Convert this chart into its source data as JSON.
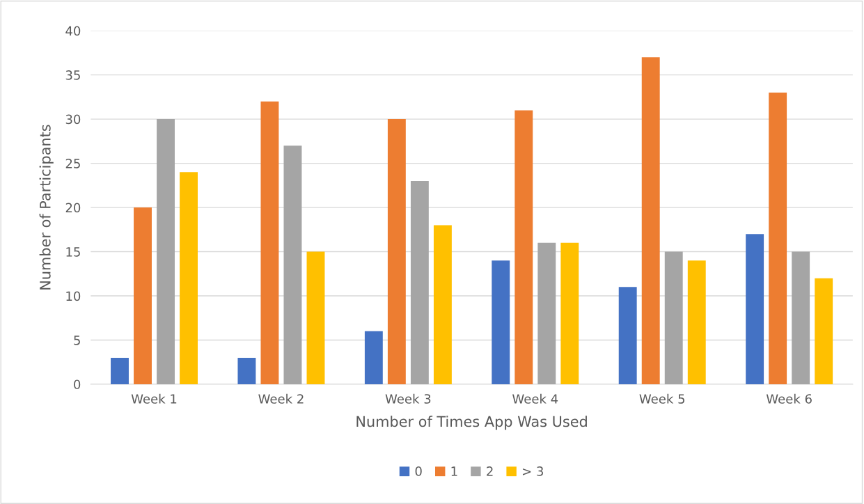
{
  "chart_data": {
    "type": "bar",
    "xlabel": "Number of Times App Was Used",
    "ylabel": "Number of Participants",
    "categories": [
      "Week 1",
      "Week 2",
      "Week 3",
      "Week 4",
      "Week 5",
      "Week 6"
    ],
    "series": [
      {
        "name": "0",
        "color": "#4472c4",
        "values": [
          3,
          3,
          6,
          14,
          11,
          17
        ]
      },
      {
        "name": "1",
        "color": "#ed7d31",
        "values": [
          20,
          32,
          30,
          31,
          37,
          33
        ]
      },
      {
        "name": "2",
        "color": "#a5a5a5",
        "values": [
          30,
          27,
          23,
          16,
          15,
          15
        ]
      },
      {
        "name": "> 3",
        "color": "#ffc000",
        "values": [
          24,
          15,
          18,
          16,
          14,
          12
        ]
      }
    ],
    "ylim": [
      0,
      40
    ],
    "yticks": [
      0,
      5,
      10,
      15,
      20,
      25,
      30,
      35,
      40
    ],
    "grid": "y",
    "legend": "bottom"
  }
}
